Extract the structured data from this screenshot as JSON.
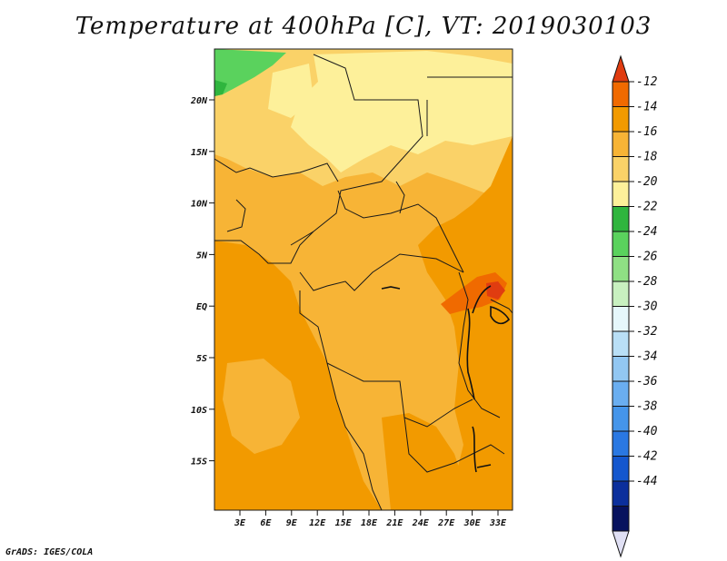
{
  "title": "Temperature at 400hPa [C], VT: 2019030103",
  "credit": "GrADS: IGES/COLA",
  "map": {
    "lat_labels": [
      "20N",
      "15N",
      "10N",
      "5N",
      "EQ",
      "5S",
      "10S",
      "15S"
    ],
    "lon_labels": [
      "3E",
      "6E",
      "9E",
      "12E",
      "15E",
      "18E",
      "21E",
      "24E",
      "27E",
      "30E",
      "33E"
    ]
  },
  "colorbar": {
    "labels": [
      "-12",
      "-14",
      "-16",
      "-18",
      "-20",
      "-22",
      "-24",
      "-26",
      "-28",
      "-30",
      "-32",
      "-34",
      "-36",
      "-38",
      "-40",
      "-42",
      "-44"
    ],
    "colors": [
      "#e03c10",
      "#f06a00",
      "#f29a00",
      "#f7b436",
      "#fad268",
      "#fdf09a",
      "#2fb53e",
      "#5ad25d",
      "#8fe084",
      "#c8f0c0",
      "#e6f7fb",
      "#b9dff6",
      "#92c7f2",
      "#6aaef0",
      "#4595ea",
      "#2a78e2",
      "#1457ce",
      "#0b2f9c",
      "#07125e",
      "#e0e0f4"
    ]
  }
}
